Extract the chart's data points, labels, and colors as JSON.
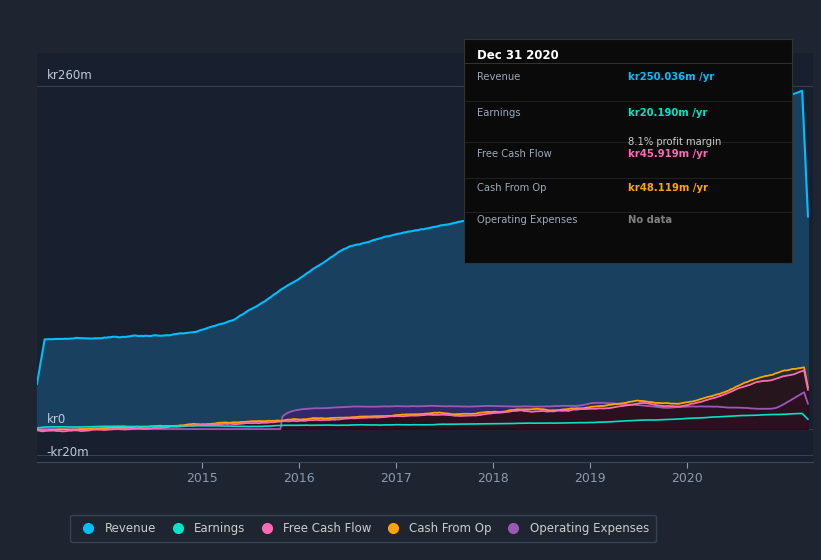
{
  "bg_color": "#1e2530",
  "plot_bg_color": "#182030",
  "title": "Dec 31 2020",
  "info_rows": [
    {
      "label": "Revenue",
      "value": "kr250.036m",
      "suffix": " /yr",
      "value_color": "#00bfff",
      "extra": null
    },
    {
      "label": "Earnings",
      "value": "kr20.190m",
      "suffix": " /yr",
      "value_color": "#00e5c8",
      "extra": "8.1% profit margin"
    },
    {
      "label": "Free Cash Flow",
      "value": "kr45.919m",
      "suffix": " /yr",
      "value_color": "#ff69b4",
      "extra": null
    },
    {
      "label": "Cash From Op",
      "value": "kr48.119m",
      "suffix": " /yr",
      "value_color": "#ffa500",
      "extra": null
    },
    {
      "label": "Operating Expenses",
      "value": "No data",
      "suffix": "",
      "value_color": "#808080",
      "extra": null
    }
  ],
  "ylabel_top": "kr260m",
  "ylabel_zero": "kr0",
  "ylabel_neg": "-kr20m",
  "ylim": [
    -25,
    285
  ],
  "xlim_start": 2013.3,
  "xlim_end": 2021.3,
  "xticks": [
    2015,
    2016,
    2017,
    2018,
    2019,
    2020
  ],
  "hline_y": [
    260,
    0,
    -20
  ],
  "revenue_color": "#00bfff",
  "revenue_fill": "#1a4060",
  "earnings_color": "#00e5c8",
  "free_cash_color": "#ff69b4",
  "cash_from_op_color": "#ffa500",
  "op_exp_color": "#9b59b6",
  "legend_items": [
    {
      "label": "Revenue",
      "color": "#00bfff"
    },
    {
      "label": "Earnings",
      "color": "#00e5c8"
    },
    {
      "label": "Free Cash Flow",
      "color": "#ff69b4"
    },
    {
      "label": "Cash From Op",
      "color": "#ffa500"
    },
    {
      "label": "Operating Expenses",
      "color": "#9b59b6"
    }
  ]
}
